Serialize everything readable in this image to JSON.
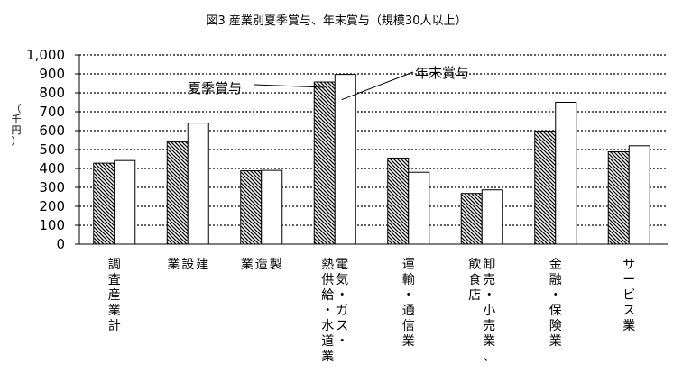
{
  "chart_data": {
    "type": "bar",
    "title": "図3 産業別夏季賞与、年末賞与（規模30人以上）",
    "ylabel": "（千円）",
    "xlabel": "",
    "ylim": [
      0,
      1000
    ],
    "yticks": [
      "0",
      "100",
      "200",
      "300",
      "400",
      "500",
      "600",
      "700",
      "800",
      "900",
      "1,000"
    ],
    "grid": true,
    "categories": [
      "調査産業計",
      "建設業",
      "製造業",
      "電気・ガス・熱供給・水道業",
      "運輸・通信業",
      "卸売・小売業、飲食店",
      "金融・保険業",
      "サービス業"
    ],
    "category_columns": [
      [
        "調査産業計"
      ],
      [
        "建",
        "設",
        "業"
      ],
      [
        "製",
        "造",
        "業"
      ],
      [
        "電気・ガス・",
        "熱供給・水道業"
      ],
      [
        "運輸・通信業"
      ],
      [
        "卸売・小売業、",
        "飲食店"
      ],
      [
        "金融・保険業"
      ],
      [
        "サービス業"
      ]
    ],
    "series": [
      {
        "name": "夏季賞与",
        "values": [
          428,
          540,
          388,
          857,
          455,
          268,
          598,
          488
        ]
      },
      {
        "name": "年末賞与",
        "values": [
          442,
          640,
          390,
          897,
          380,
          287,
          750,
          520
        ]
      }
    ],
    "legend_placement": "callouts near electricity bars"
  }
}
